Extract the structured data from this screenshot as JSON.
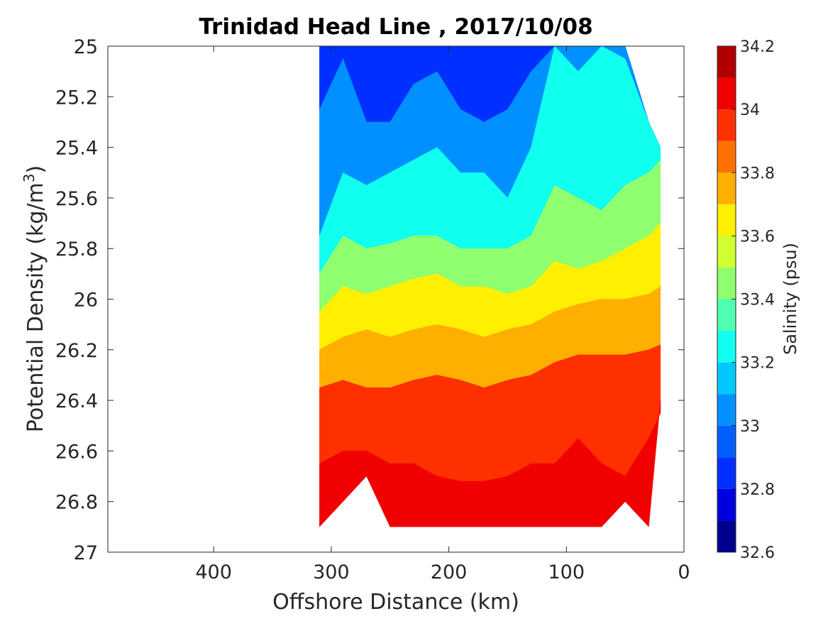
{
  "chart_data": {
    "type": "heatmap",
    "title": "Trinidad Head Line , 2017/10/08",
    "xlabel": "Offshore Distance (km)",
    "ylabel_main": "Potential Density (kg/m",
    "ylabel_sup": "3",
    "ylabel_close": ")",
    "colorbar_label": "Salinity (psu)",
    "xlim": [
      490,
      0
    ],
    "ylim": [
      25,
      27
    ],
    "y_reversed": true,
    "x_reversed": true,
    "x_ticks": [
      400,
      300,
      200,
      100,
      0
    ],
    "y_ticks": [
      25,
      25.2,
      25.4,
      25.6,
      25.8,
      26,
      26.2,
      26.4,
      26.6,
      26.8,
      27
    ],
    "y_tick_labels": [
      "25",
      "25.2",
      "25.4",
      "25.6",
      "25.8",
      "26",
      "26.2",
      "26.4",
      "26.6",
      "26.8",
      "27"
    ],
    "grid": false,
    "colorbar": {
      "levels": [
        32.6,
        32.7,
        32.8,
        32.9,
        33.0,
        33.1,
        33.2,
        33.3,
        33.4,
        33.5,
        33.6,
        33.7,
        33.8,
        33.9,
        34.0,
        34.1,
        34.2
      ],
      "tick_values": [
        32.6,
        32.8,
        33.0,
        33.2,
        33.4,
        33.6,
        33.8,
        34.0,
        34.2
      ],
      "tick_labels": [
        "32.6",
        "32.8",
        "33",
        "33.2",
        "33.4",
        "33.6",
        "33.8",
        "34",
        "34.2"
      ],
      "colors": [
        "#00008f",
        "#0000df",
        "#0030ff",
        "#0060ff",
        "#0090ff",
        "#00c8ff",
        "#10ffef",
        "#50ffaf",
        "#8fff70",
        "#cfff30",
        "#ffef00",
        "#ffaf00",
        "#ff7000",
        "#ff3000",
        "#f00000",
        "#b00000"
      ]
    },
    "section": {
      "x_km": [
        310,
        290,
        270,
        250,
        230,
        210,
        190,
        170,
        150,
        130,
        110,
        90,
        70,
        50,
        30,
        20
      ],
      "bottom_density": [
        26.9,
        26.8,
        26.7,
        26.9,
        26.9,
        26.9,
        26.9,
        26.9,
        26.9,
        26.9,
        26.9,
        26.9,
        26.9,
        26.8,
        26.9,
        26.4
      ],
      "top_density": [
        25.0,
        25.0,
        25.0,
        25.0,
        25.0,
        25.0,
        25.0,
        25.0,
        25.0,
        25.0,
        25.0,
        25.0,
        25.0,
        25.0,
        25.3,
        25.4
      ],
      "isohaline_33": [
        25.25,
        25.05,
        25.3,
        25.3,
        25.15,
        25.1,
        25.25,
        25.3,
        25.25,
        25.1,
        25.0,
        25.0,
        25.0,
        25.0,
        25.3,
        25.4
      ],
      "isohaline_33_2": [
        25.75,
        25.5,
        25.55,
        25.5,
        25.45,
        25.4,
        25.5,
        25.5,
        25.6,
        25.4,
        25.0,
        25.1,
        25.0,
        25.05,
        25.3,
        25.4
      ],
      "isohaline_33_4": [
        25.9,
        25.75,
        25.8,
        25.78,
        25.75,
        25.75,
        25.8,
        25.8,
        25.8,
        25.75,
        25.55,
        25.6,
        25.65,
        25.55,
        25.5,
        25.45
      ],
      "isohaline_33_6": [
        26.05,
        25.95,
        25.98,
        25.95,
        25.92,
        25.9,
        25.95,
        25.95,
        25.98,
        25.95,
        25.85,
        25.88,
        25.85,
        25.8,
        25.75,
        25.7
      ],
      "isohaline_33_8": [
        26.2,
        26.15,
        26.12,
        26.15,
        26.12,
        26.1,
        26.12,
        26.15,
        26.12,
        26.1,
        26.05,
        26.02,
        26.0,
        26.0,
        25.98,
        25.95
      ],
      "isohaline_34": [
        26.35,
        26.32,
        26.35,
        26.35,
        26.32,
        26.3,
        26.32,
        26.35,
        26.32,
        26.3,
        26.25,
        26.22,
        26.22,
        26.22,
        26.2,
        26.18
      ],
      "isohaline_34_1": [
        26.65,
        26.6,
        26.6,
        26.65,
        26.65,
        26.7,
        26.72,
        26.72,
        26.7,
        26.65,
        26.65,
        26.55,
        26.65,
        26.7,
        26.55,
        26.45
      ]
    }
  }
}
